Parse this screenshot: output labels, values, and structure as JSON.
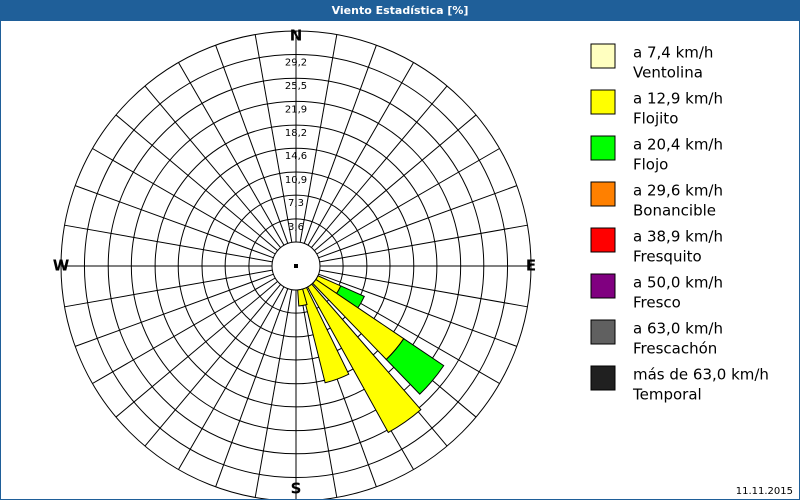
{
  "chart_data": {
    "type": "windrose",
    "title": "Viento Estadística [%]",
    "date": "11.11.2015",
    "direction_labels": [
      "N",
      "E",
      "S",
      "W"
    ],
    "rlim": [
      0,
      32.85
    ],
    "rticks": [
      {
        "value": 3.6,
        "label": "3,6"
      },
      {
        "value": 7.3,
        "label": "7,3"
      },
      {
        "value": 10.9,
        "label": "10,9"
      },
      {
        "value": 14.6,
        "label": "14,6"
      },
      {
        "value": 18.2,
        "label": "18,2"
      },
      {
        "value": 21.9,
        "label": "21,9"
      },
      {
        "value": 25.5,
        "label": "25,5"
      },
      {
        "value": 29.2,
        "label": "29,2"
      }
    ],
    "x": [
      120,
      130,
      145,
      160,
      170
    ],
    "series": [
      {
        "range": "a 7,4 km/h",
        "name": "Ventolina",
        "color": "#ffffc0",
        "values": [
          0,
          0,
          0,
          0,
          0
        ]
      },
      {
        "range": "a 12,9 km/h",
        "name": "Flojito",
        "color": "#ffff00",
        "values": [
          3.9,
          16.5,
          25.9,
          15,
          2.5
        ]
      },
      {
        "range": "a 20,4 km/h",
        "name": "Flojo",
        "color": "#00ff00",
        "values": [
          4,
          7.5,
          0,
          0,
          0
        ]
      },
      {
        "range": "a 29,6 km/h",
        "name": "Bonancible",
        "color": "#ff8000",
        "values": [
          0,
          0,
          0,
          0,
          0
        ]
      },
      {
        "range": "a 38,9 km/h",
        "name": "Fresquito",
        "color": "#ff0000",
        "values": [
          0,
          0,
          0,
          0,
          0
        ]
      },
      {
        "range": "a 50,0 km/h",
        "name": "Fresco",
        "color": "#800080",
        "values": [
          0,
          0,
          0,
          0,
          0
        ]
      },
      {
        "range": "a 63,0 km/h",
        "name": "Frescachón",
        "color": "#606060",
        "values": [
          0,
          0,
          0,
          0,
          0
        ]
      },
      {
        "range": "más de 63,0 km/h",
        "name": "Temporal",
        "color": "#202020",
        "values": [
          0,
          0,
          0,
          0,
          0
        ]
      }
    ]
  }
}
